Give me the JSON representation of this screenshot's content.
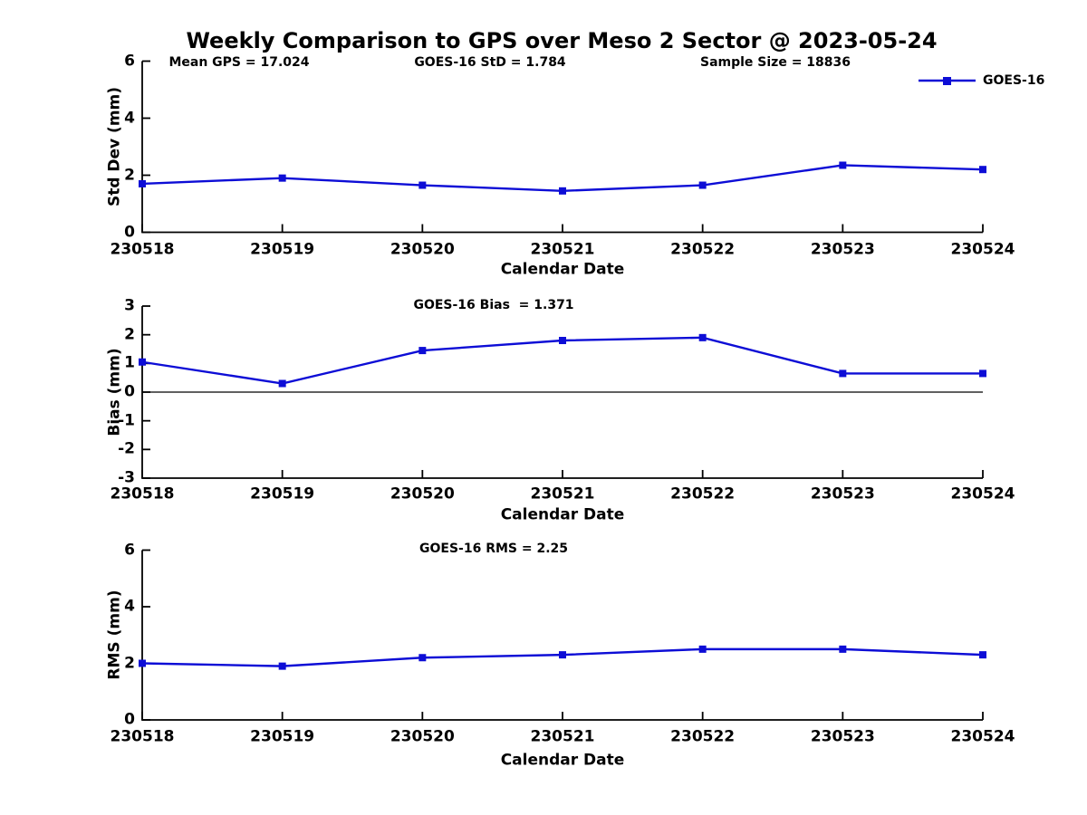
{
  "title": "Weekly Comparison to GPS over Meso 2 Sector @ 2023-05-24",
  "legend": {
    "label": "GOES-16",
    "position": "top-right",
    "marker": "filled-square",
    "color": "#0d0dd6"
  },
  "colors": {
    "series": "#0d0dd6",
    "axis": "#000000",
    "background": "#ffffff",
    "text": "#000000"
  },
  "chart_data": [
    {
      "id": "stddev",
      "type": "line",
      "categories": [
        "230518",
        "230519",
        "230520",
        "230521",
        "230522",
        "230523",
        "230524"
      ],
      "series": [
        {
          "name": "GOES-16",
          "values": [
            1.7,
            1.9,
            1.65,
            1.45,
            1.65,
            2.35,
            2.2
          ]
        }
      ],
      "annotations": [
        "Mean GPS = 17.024",
        "GOES-16 StD = 1.784",
        "Sample Size = 18836"
      ],
      "xlabel": "Calendar Date",
      "ylabel": "Std Dev (mm)",
      "ylim": [
        0,
        6
      ],
      "yticks": [
        0,
        2,
        4,
        6
      ],
      "grid": false,
      "zero_line": false
    },
    {
      "id": "bias",
      "type": "line",
      "categories": [
        "230518",
        "230519",
        "230520",
        "230521",
        "230522",
        "230523",
        "230524"
      ],
      "series": [
        {
          "name": "GOES-16",
          "values": [
            1.05,
            0.3,
            1.45,
            1.8,
            1.9,
            0.65,
            0.65
          ]
        }
      ],
      "annotations": [
        "GOES-16 Bias  = 1.371"
      ],
      "xlabel": "Calendar Date",
      "ylabel": "Bias (mm)",
      "ylim": [
        -3,
        3
      ],
      "yticks": [
        -3,
        -2,
        -1,
        0,
        1,
        2,
        3
      ],
      "grid": false,
      "zero_line": true
    },
    {
      "id": "rms",
      "type": "line",
      "categories": [
        "230518",
        "230519",
        "230520",
        "230521",
        "230522",
        "230523",
        "230524"
      ],
      "series": [
        {
          "name": "GOES-16",
          "values": [
            2.0,
            1.9,
            2.2,
            2.3,
            2.5,
            2.5,
            2.3
          ]
        }
      ],
      "annotations": [
        "GOES-16 RMS = 2.25"
      ],
      "xlabel": "Calendar Date",
      "ylabel": "RMS (mm)",
      "ylim": [
        0,
        6
      ],
      "yticks": [
        0,
        2,
        4,
        6
      ],
      "grid": false,
      "zero_line": false
    }
  ]
}
